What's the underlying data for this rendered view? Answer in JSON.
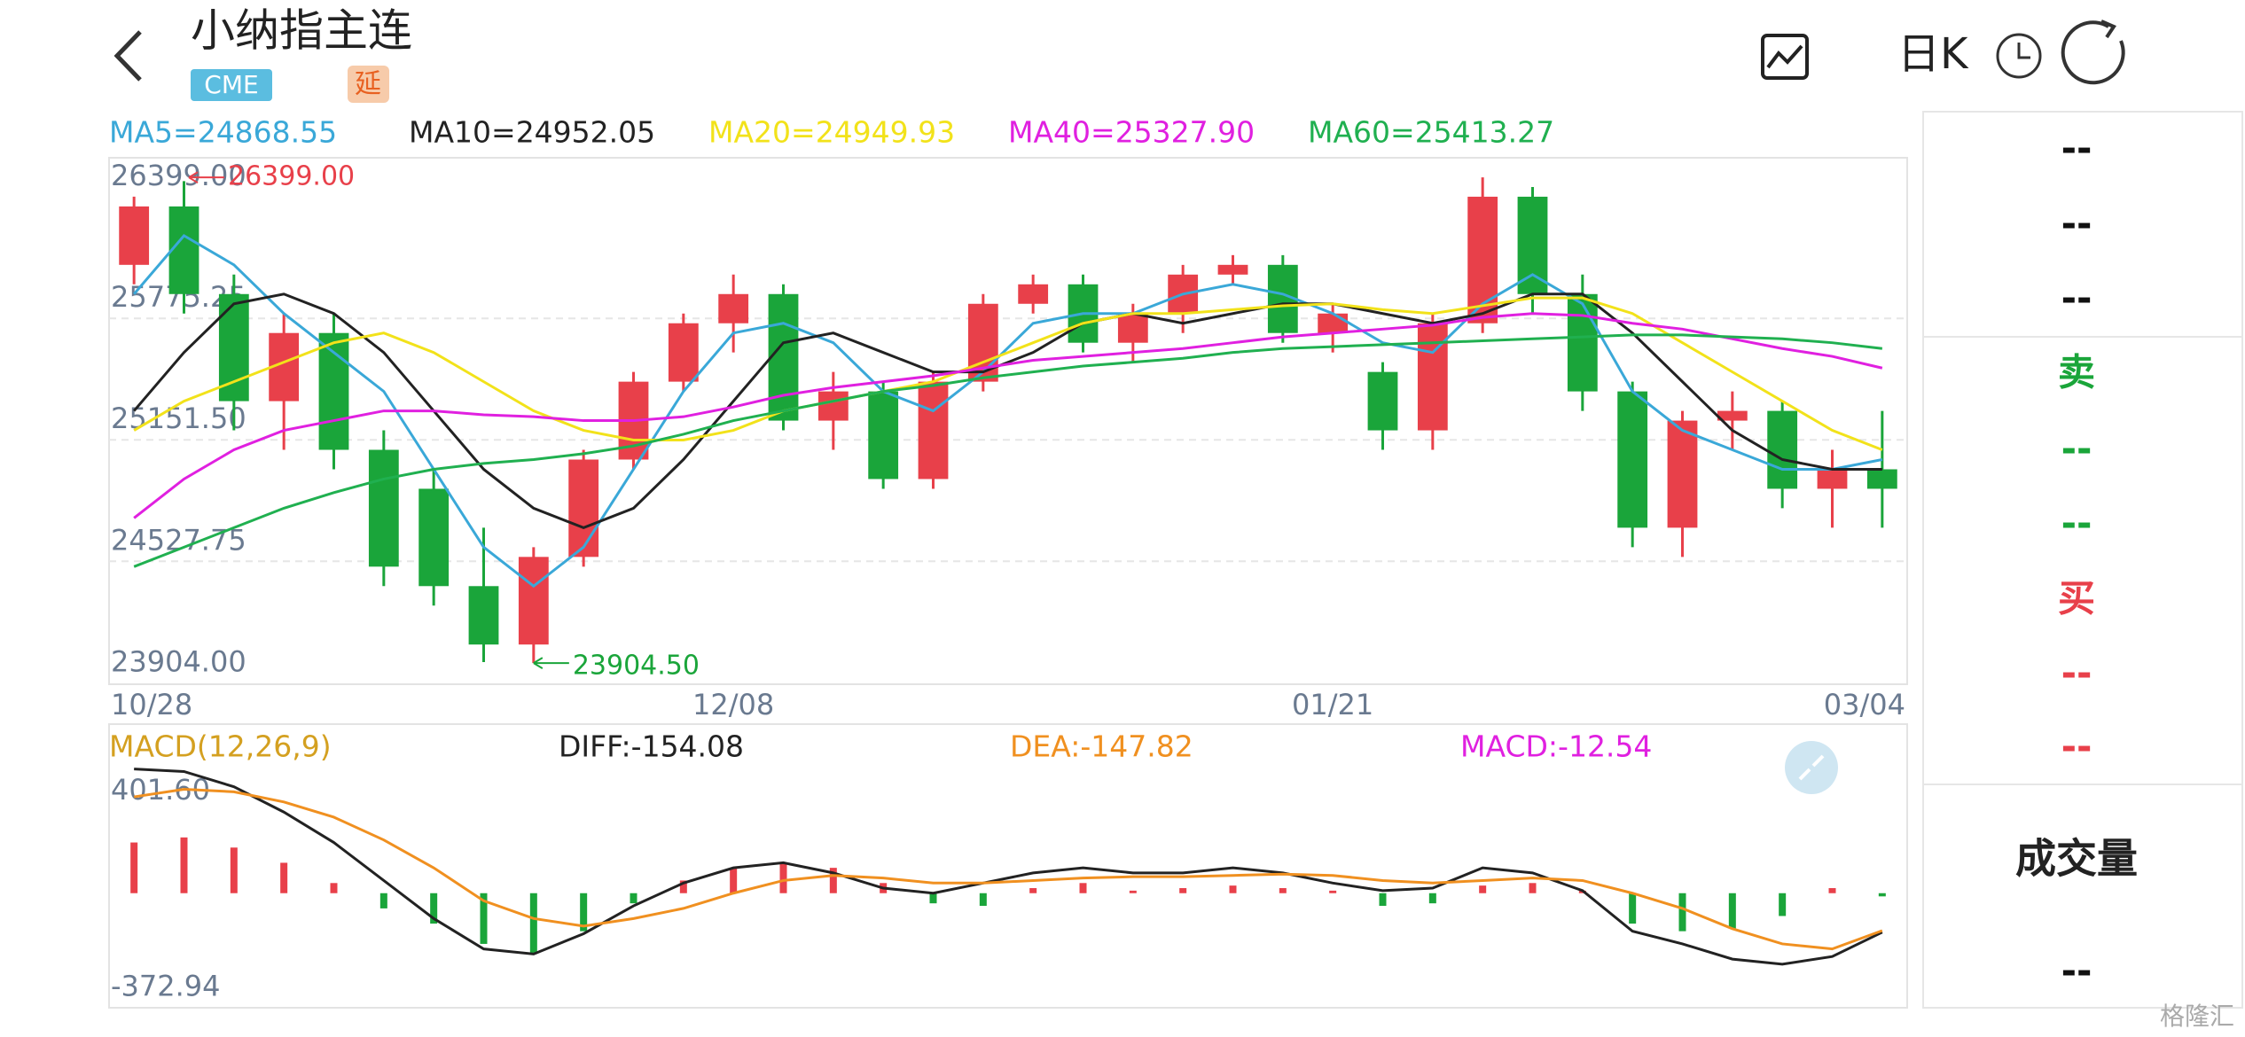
{
  "header": {
    "title": "小纳指主连",
    "badges": [
      "CME",
      "延"
    ],
    "period": "日K"
  },
  "chart_data": [
    {
      "type": "candlestick",
      "categories": [
        "10/28",
        null,
        null,
        null,
        null,
        null,
        null,
        null,
        null,
        null,
        null,
        null,
        "12/08",
        null,
        null,
        null,
        null,
        null,
        null,
        null,
        null,
        null,
        null,
        null,
        "01/21",
        null,
        null,
        null,
        null,
        null,
        null,
        null,
        null,
        null,
        null,
        "03/04"
      ],
      "open": [
        25950,
        26250,
        25800,
        25250,
        25600,
        25000,
        24800,
        24300,
        24000,
        24450,
        24950,
        25350,
        25650,
        25800,
        25150,
        25300,
        24850,
        25350,
        25750,
        25850,
        25550,
        25700,
        25900,
        25950,
        25600,
        25400,
        25100,
        25650,
        26300,
        25800,
        25300,
        24600,
        25150,
        25200,
        24800,
        24900
      ],
      "high": [
        26300,
        26380,
        25900,
        25700,
        25700,
        25100,
        24900,
        24600,
        24500,
        25000,
        25400,
        25700,
        25900,
        25850,
        25400,
        25350,
        25400,
        25800,
        25900,
        25900,
        25750,
        25950,
        26000,
        26000,
        25750,
        25450,
        25700,
        26399,
        26350,
        25900,
        25350,
        25200,
        25300,
        25250,
        25000,
        25200
      ],
      "low": [
        25850,
        25700,
        25100,
        25000,
        24900,
        24300,
        24200,
        23910,
        23904.5,
        24400,
        24900,
        25300,
        25500,
        25100,
        25000,
        24800,
        24800,
        25300,
        25700,
        25500,
        25450,
        25600,
        25850,
        25550,
        25500,
        25000,
        25000,
        25600,
        25700,
        25200,
        24500,
        24450,
        25000,
        24700,
        24600,
        24600
      ],
      "close": [
        26250,
        25800,
        25250,
        25600,
        25000,
        24400,
        24300,
        24000,
        24450,
        24950,
        25350,
        25650,
        25800,
        25150,
        25300,
        24850,
        25350,
        25750,
        25850,
        25550,
        25700,
        25900,
        25950,
        25600,
        25700,
        25100,
        25650,
        26300,
        25800,
        25300,
        24600,
        25150,
        25200,
        24800,
        24900,
        24800
      ],
      "up_color": "#e8404a",
      "down_color": "#1aa53a",
      "ylim": [
        23796,
        26500
      ],
      "yticks": [
        {
          "value": 26399,
          "label": "26399.00"
        },
        {
          "value": 25775.25,
          "label": "25775.25"
        },
        {
          "value": 25151.5,
          "label": "25151.50"
        },
        {
          "value": 24527.75,
          "label": "24527.75"
        },
        {
          "value": 23904,
          "label": "23904.00"
        }
      ],
      "grid": true,
      "series": [
        {
          "name": "MA5=24868.55",
          "color": "#3aa8d8",
          "values": [
            25800,
            26100,
            25950,
            25700,
            25500,
            25300,
            24900,
            24500,
            24300,
            24500,
            24900,
            25300,
            25600,
            25650,
            25550,
            25300,
            25200,
            25400,
            25650,
            25700,
            25700,
            25800,
            25850,
            25800,
            25700,
            25550,
            25500,
            25750,
            25900,
            25750,
            25300,
            25100,
            25000,
            24900,
            24900,
            24950
          ]
        },
        {
          "name": "MA10=24952.05",
          "color": "#222222",
          "values": [
            25200,
            25500,
            25750,
            25800,
            25700,
            25500,
            25200,
            24900,
            24700,
            24600,
            24700,
            24950,
            25250,
            25550,
            25600,
            25500,
            25400,
            25400,
            25500,
            25650,
            25700,
            25650,
            25700,
            25750,
            25750,
            25700,
            25650,
            25700,
            25800,
            25800,
            25600,
            25350,
            25100,
            24950,
            24900,
            24900
          ]
        },
        {
          "name": "MA20=24949.93",
          "color": "#f2e21a",
          "values": [
            25100,
            25250,
            25350,
            25450,
            25550,
            25600,
            25500,
            25350,
            25200,
            25100,
            25050,
            25050,
            25100,
            25200,
            25250,
            25300,
            25350,
            25450,
            25550,
            25650,
            25700,
            25700,
            25720,
            25740,
            25750,
            25720,
            25700,
            25740,
            25780,
            25780,
            25700,
            25550,
            25400,
            25250,
            25100,
            25000
          ]
        },
        {
          "name": "MA40=25327.90",
          "color": "#e020e0",
          "values": [
            24650,
            24850,
            25000,
            25100,
            25150,
            25200,
            25200,
            25180,
            25170,
            25150,
            25150,
            25170,
            25220,
            25280,
            25320,
            25350,
            25380,
            25420,
            25460,
            25480,
            25500,
            25520,
            25550,
            25580,
            25600,
            25620,
            25640,
            25680,
            25700,
            25690,
            25650,
            25620,
            25570,
            25520,
            25480,
            25420
          ]
        },
        {
          "name": "MA60=25413.27",
          "color": "#20b050",
          "values": [
            24400,
            24500,
            24600,
            24700,
            24780,
            24850,
            24900,
            24930,
            24950,
            24980,
            25020,
            25080,
            25150,
            25200,
            25250,
            25300,
            25330,
            25370,
            25400,
            25430,
            25450,
            25470,
            25500,
            25520,
            25530,
            25540,
            25550,
            25560,
            25570,
            25580,
            25590,
            25590,
            25580,
            25570,
            25550,
            25520
          ]
        }
      ],
      "annotations": [
        {
          "label": "26399.00",
          "value": 26399,
          "color": "#e8404a"
        },
        {
          "label": "23904.50",
          "value": 23904.5,
          "color": "#1aa53a"
        }
      ]
    },
    {
      "type": "macd",
      "title": "MACD(12,26,9)",
      "title_color": "#d4a020",
      "ylim": [
        -452,
        667
      ],
      "yticks": [
        {
          "value": 401.6,
          "label": "401.60"
        },
        {
          "value": -372.94,
          "label": "-372.94"
        }
      ],
      "histogram": {
        "name": "MACD:-12.54",
        "color": "#e020e0",
        "up_color": "#e8404a",
        "down_color": "#1aa53a",
        "values": [
          200,
          220,
          180,
          120,
          40,
          -60,
          -120,
          -200,
          -240,
          -150,
          -40,
          50,
          100,
          120,
          100,
          40,
          -40,
          -50,
          20,
          40,
          10,
          20,
          30,
          20,
          10,
          -50,
          -40,
          30,
          40,
          10,
          -120,
          -150,
          -140,
          -90,
          20,
          -12.54
        ]
      },
      "series": [
        {
          "name": "DIFF:-154.08",
          "color": "#222222",
          "values": [
            490,
            480,
            420,
            320,
            200,
            50,
            -100,
            -220,
            -240,
            -160,
            -50,
            40,
            100,
            120,
            80,
            20,
            0,
            40,
            80,
            100,
            80,
            80,
            100,
            80,
            40,
            10,
            20,
            100,
            80,
            10,
            -150,
            -200,
            -260,
            -280,
            -250,
            -154.08
          ]
        },
        {
          "name": "DEA:-147.82",
          "color": "#f09020",
          "values": [
            380,
            410,
            400,
            360,
            300,
            210,
            100,
            -30,
            -100,
            -130,
            -100,
            -60,
            0,
            50,
            70,
            60,
            40,
            40,
            50,
            60,
            65,
            65,
            70,
            75,
            70,
            50,
            40,
            50,
            60,
            50,
            0,
            -60,
            -140,
            -200,
            -220,
            -147.82
          ]
        }
      ]
    }
  ],
  "side": {
    "rows": [
      {
        "text": "--",
        "color": "#111111"
      },
      {
        "text": "--",
        "color": "#111111"
      },
      {
        "text": "--",
        "color": "#111111"
      },
      {
        "text": "卖",
        "color": "#1aa53a"
      },
      {
        "text": "--",
        "color": "#1aa53a"
      },
      {
        "text": "--",
        "color": "#1aa53a"
      },
      {
        "text": "买",
        "color": "#e8404a"
      },
      {
        "text": "--",
        "color": "#e8404a"
      },
      {
        "text": "--",
        "color": "#e8404a"
      },
      {
        "text": "成交量",
        "color": "#222222"
      },
      {
        "text": "--",
        "color": "#111111"
      }
    ]
  },
  "watermark": "格隆汇"
}
